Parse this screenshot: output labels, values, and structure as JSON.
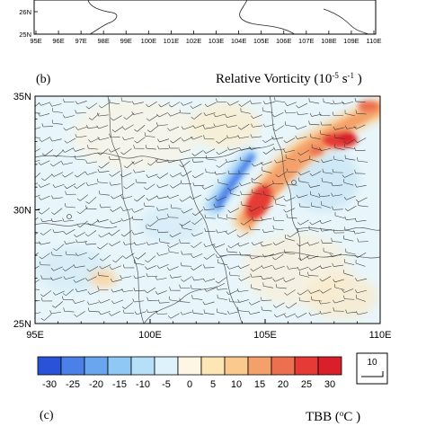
{
  "panel_a": {
    "x_ticks": [
      "95E",
      "96E",
      "97E",
      "98E",
      "99E",
      "100E",
      "101E",
      "102E",
      "103E",
      "104E",
      "105E",
      "106E",
      "107E",
      "108E",
      "109E",
      "110E"
    ],
    "y_ticks": [
      "26N",
      "25N"
    ]
  },
  "panel_b": {
    "label": "(b)",
    "title_main": "Relative Vorticity (10",
    "title_exp1": "-5",
    "title_mid": " s",
    "title_exp2": "-1",
    "title_end": " )",
    "x_ticks": [
      "95E",
      "100E",
      "105E",
      "110E"
    ],
    "y_ticks": [
      "35N",
      "30N",
      "25N"
    ]
  },
  "colorbar": {
    "labels": [
      "-30",
      "-25",
      "-20",
      "-15",
      "-10",
      "-5",
      "0",
      "5",
      "10",
      "15",
      "20",
      "25",
      "30"
    ],
    "colors": [
      "#2a52d8",
      "#4b80e8",
      "#6aa6f0",
      "#8fc8f5",
      "#b6e0f8",
      "#ddf2fa",
      "#fdf6e4",
      "#fde6b6",
      "#f9c98d",
      "#f4a06a",
      "#ec6f4f",
      "#e53a35",
      "#d81f2a"
    ]
  },
  "wind_reference": {
    "label": "10"
  },
  "panel_c": {
    "label": "(c)",
    "title_main": "TBB  (",
    "title_sup": "o",
    "title_end": "C )"
  },
  "chart_data": {
    "type": "heatmap",
    "title": "Relative Vorticity (10^-5 s^-1)",
    "xlabel": "",
    "ylabel": "",
    "xlim": [
      95,
      110
    ],
    "ylim": [
      25,
      35
    ],
    "x_ticks": [
      95,
      100,
      105,
      110
    ],
    "y_ticks": [
      25,
      30,
      35
    ],
    "colorbar_levels": [
      -30,
      -25,
      -20,
      -15,
      -10,
      -5,
      0,
      5,
      10,
      15,
      20,
      25,
      30
    ],
    "features": [
      {
        "kind": "negative_vorticity_band",
        "from": [
          102.8,
          29.9
        ],
        "to": [
          104.6,
          32.9
        ],
        "value": -30
      },
      {
        "kind": "positive_vorticity_band",
        "from": [
          104.0,
          29.0
        ],
        "to": [
          109.5,
          34.6
        ],
        "value": 25
      },
      {
        "kind": "positive_vorticity_max",
        "center": [
          104.8,
          30.4
        ],
        "value": 30
      },
      {
        "kind": "positive_vorticity_max",
        "center": [
          108.3,
          33.1
        ],
        "value": 30
      }
    ],
    "wind_barbs": "present",
    "grid": false
  }
}
